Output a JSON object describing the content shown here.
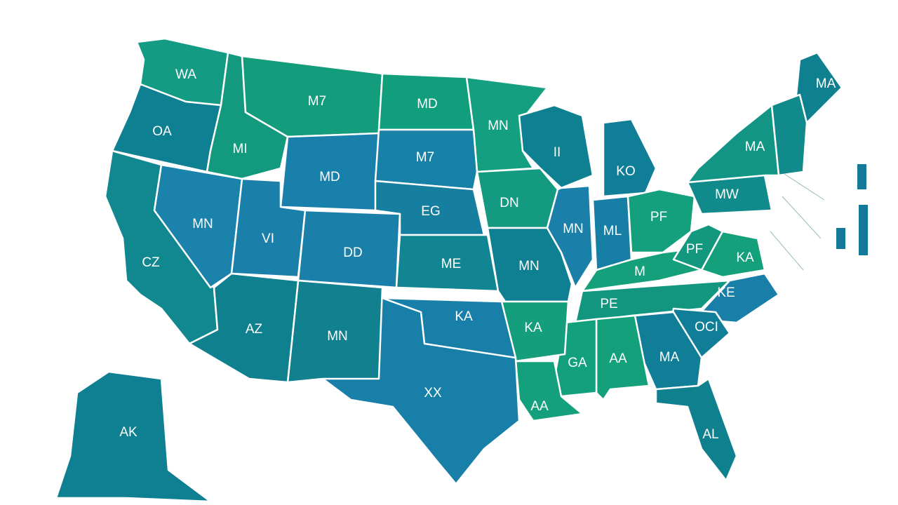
{
  "states": [
    {
      "label": "WA",
      "color": "#139b83"
    },
    {
      "label": "OA",
      "color": "#0f7f92"
    },
    {
      "label": "CZ",
      "color": "#118890"
    },
    {
      "label": "MN",
      "color": "#1a82ab"
    },
    {
      "label": "MI",
      "color": "#13997d"
    },
    {
      "label": "M7",
      "color": "#139d7c"
    },
    {
      "label": "MD",
      "color": "#109e7c"
    },
    {
      "label": "MN",
      "color": "#14a080"
    },
    {
      "label": "MD",
      "color": "#1880aa"
    },
    {
      "label": "M7",
      "color": "#1881a8"
    },
    {
      "label": "EG",
      "color": "#167e9f"
    },
    {
      "label": "VI",
      "color": "#1a80aa"
    },
    {
      "label": "DD",
      "color": "#1a80aa"
    },
    {
      "label": "ME",
      "color": "#118591"
    },
    {
      "label": "DN",
      "color": "#139a80"
    },
    {
      "label": "MN",
      "color": "#0f7f92"
    },
    {
      "label": "II",
      "color": "#0f7f92"
    },
    {
      "label": "KO",
      "color": "#117e98"
    },
    {
      "label": "MN",
      "color": "#1a80aa"
    },
    {
      "label": "ML",
      "color": "#177ea5"
    },
    {
      "label": "PF",
      "color": "#14a07c"
    },
    {
      "label": "M",
      "color": "#14a07a"
    },
    {
      "label": "PF",
      "color": "#13977f"
    },
    {
      "label": "KA",
      "color": "#14a07a"
    },
    {
      "label": "MW",
      "color": "#118a8c"
    },
    {
      "label": "MA",
      "color": "#129585"
    },
    {
      "label": "MA",
      "color": "#0f8090"
    },
    {
      "label": "PE",
      "color": "#12967f"
    },
    {
      "label": "KE",
      "color": "#1a7fa8"
    },
    {
      "label": "OCI",
      "color": "#117e98"
    },
    {
      "label": "MA",
      "color": "#117e98"
    },
    {
      "label": "AA",
      "color": "#14a07a"
    },
    {
      "label": "GA",
      "color": "#13a07c"
    },
    {
      "label": "KA",
      "color": "#149e7c"
    },
    {
      "label": "AA",
      "color": "#14a07c"
    },
    {
      "label": "KA",
      "color": "#1880a8"
    },
    {
      "label": "XX",
      "color": "#1880a8"
    },
    {
      "label": "MN",
      "color": "#11808f"
    },
    {
      "label": "AZ",
      "color": "#0f808d"
    },
    {
      "label": "AL",
      "color": "#0f808d"
    },
    {
      "label": "AK",
      "color": "#0f7f92"
    }
  ]
}
